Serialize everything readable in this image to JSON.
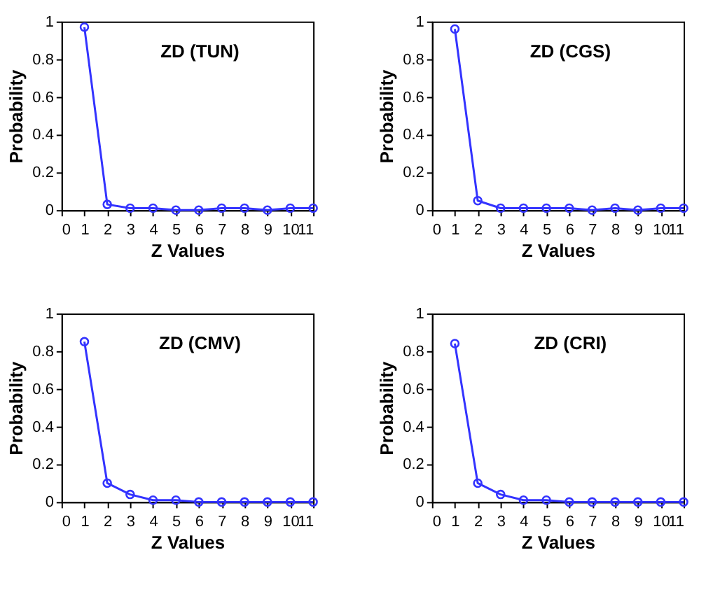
{
  "chart_data": [
    {
      "type": "line",
      "title": "ZD (TUN)",
      "xlabel": "Z Values",
      "ylabel": "Probability",
      "x": [
        1,
        2,
        3,
        4,
        5,
        6,
        7,
        8,
        9,
        10,
        11
      ],
      "series": [
        {
          "color": "#3333ff",
          "values": [
            0.97,
            0.03,
            0.01,
            0.01,
            0,
            0,
            0.01,
            0.01,
            0,
            0.01,
            0.01
          ]
        }
      ],
      "xlim": [
        0,
        11
      ],
      "ylim": [
        0,
        1
      ],
      "xticks": [
        0,
        1,
        2,
        3,
        4,
        5,
        6,
        7,
        8,
        9,
        10,
        11
      ],
      "yticks": [
        0,
        0.2,
        0.4,
        0.6,
        0.8,
        1
      ],
      "marker": "circle"
    },
    {
      "type": "line",
      "title": "ZD (CGS)",
      "xlabel": "Z Values",
      "ylabel": "Probability",
      "x": [
        1,
        2,
        3,
        4,
        5,
        6,
        7,
        8,
        9,
        10,
        11
      ],
      "series": [
        {
          "color": "#3333ff",
          "values": [
            0.96,
            0.05,
            0.01,
            0.01,
            0.01,
            0.01,
            0,
            0.01,
            0,
            0.01,
            0.01
          ]
        }
      ],
      "xlim": [
        0,
        11
      ],
      "ylim": [
        0,
        1
      ],
      "xticks": [
        0,
        1,
        2,
        3,
        4,
        5,
        6,
        7,
        8,
        9,
        10,
        11
      ],
      "yticks": [
        0,
        0.2,
        0.4,
        0.6,
        0.8,
        1
      ],
      "marker": "circle"
    },
    {
      "type": "line",
      "title": "ZD (CMV)",
      "xlabel": "Z Values",
      "ylabel": "Probability",
      "x": [
        1,
        2,
        3,
        4,
        5,
        6,
        7,
        8,
        9,
        10,
        11
      ],
      "series": [
        {
          "color": "#3333ff",
          "values": [
            0.85,
            0.1,
            0.04,
            0.01,
            0.01,
            0,
            0,
            0,
            0,
            0,
            0
          ]
        }
      ],
      "xlim": [
        0,
        11
      ],
      "ylim": [
        0,
        1
      ],
      "xticks": [
        0,
        1,
        2,
        3,
        4,
        5,
        6,
        7,
        8,
        9,
        10,
        11
      ],
      "yticks": [
        0,
        0.2,
        0.4,
        0.6,
        0.8,
        1
      ],
      "marker": "circle"
    },
    {
      "type": "line",
      "title": "ZD (CRI)",
      "xlabel": "Z Values",
      "ylabel": "Probability",
      "x": [
        1,
        2,
        3,
        4,
        5,
        6,
        7,
        8,
        9,
        10,
        11
      ],
      "series": [
        {
          "color": "#3333ff",
          "values": [
            0.84,
            0.1,
            0.04,
            0.01,
            0.01,
            0,
            0,
            0,
            0,
            0,
            0
          ]
        }
      ],
      "xlim": [
        0,
        11
      ],
      "ylim": [
        0,
        1
      ],
      "xticks": [
        0,
        1,
        2,
        3,
        4,
        5,
        6,
        7,
        8,
        9,
        10,
        11
      ],
      "yticks": [
        0,
        0.2,
        0.4,
        0.6,
        0.8,
        1
      ],
      "marker": "circle"
    }
  ]
}
